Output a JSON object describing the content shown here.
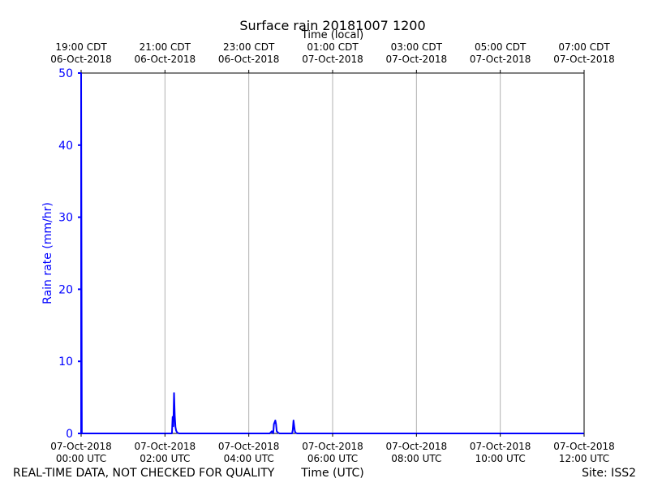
{
  "chart_data": {
    "type": "line",
    "title": "Surface rain 20181007 1200",
    "xlabel": "Time (UTC)",
    "x2label": "Time (local)",
    "ylabel": "Rain rate (mm/hr)",
    "ylim": [
      0,
      50
    ],
    "yticks": [
      0,
      10,
      20,
      30,
      40,
      50
    ],
    "xlim": [
      "2018-10-07 00:00",
      "2018-10-07 12:00"
    ],
    "xticks_bottom": [
      {
        "line1": "07-Oct-2018",
        "line2": "00:00 UTC"
      },
      {
        "line1": "07-Oct-2018",
        "line2": "02:00 UTC"
      },
      {
        "line1": "07-Oct-2018",
        "line2": "04:00 UTC"
      },
      {
        "line1": "07-Oct-2018",
        "line2": "06:00 UTC"
      },
      {
        "line1": "07-Oct-2018",
        "line2": "08:00 UTC"
      },
      {
        "line1": "07-Oct-2018",
        "line2": "10:00 UTC"
      },
      {
        "line1": "07-Oct-2018",
        "line2": "12:00 UTC"
      }
    ],
    "xticks_top": [
      {
        "line1": "19:00 CDT",
        "line2": "06-Oct-2018"
      },
      {
        "line1": "21:00 CDT",
        "line2": "06-Oct-2018"
      },
      {
        "line1": "23:00 CDT",
        "line2": "06-Oct-2018"
      },
      {
        "line1": "01:00 CDT",
        "line2": "07-Oct-2018"
      },
      {
        "line1": "03:00 CDT",
        "line2": "07-Oct-2018"
      },
      {
        "line1": "05:00 CDT",
        "line2": "07-Oct-2018"
      },
      {
        "line1": "07:00 CDT",
        "line2": "07-Oct-2018"
      }
    ],
    "grid": "vertical",
    "line_color": "#0000ff",
    "axis_label_color": "#0000ff",
    "series": [
      {
        "x": [
          "00:00",
          "00:00",
          "00:01",
          "02:10",
          "02:11",
          "02:12",
          "02:13",
          "02:14",
          "02:15",
          "02:16",
          "02:17",
          "02:18",
          "02:20",
          "04:30",
          "04:33",
          "04:35",
          "04:36",
          "04:38",
          "04:39",
          "04:40",
          "04:42",
          "04:44",
          "05:02",
          "05:03",
          "05:04",
          "05:05",
          "05:06",
          "05:07",
          "05:09",
          "12:00"
        ],
        "y": [
          0,
          50,
          0,
          0,
          2.3,
          1.0,
          5.6,
          2.5,
          0.9,
          0.4,
          0.2,
          0.1,
          0,
          0,
          0.3,
          0,
          1.3,
          1.8,
          1.3,
          0.3,
          0.1,
          0,
          0,
          0.5,
          1.8,
          1.0,
          0.3,
          0.1,
          0,
          0
        ]
      }
    ]
  },
  "footer": {
    "left": "REAL-TIME DATA, NOT CHECKED FOR QUALITY",
    "center": "Time (UTC)",
    "right": "Site: ISS2"
  }
}
